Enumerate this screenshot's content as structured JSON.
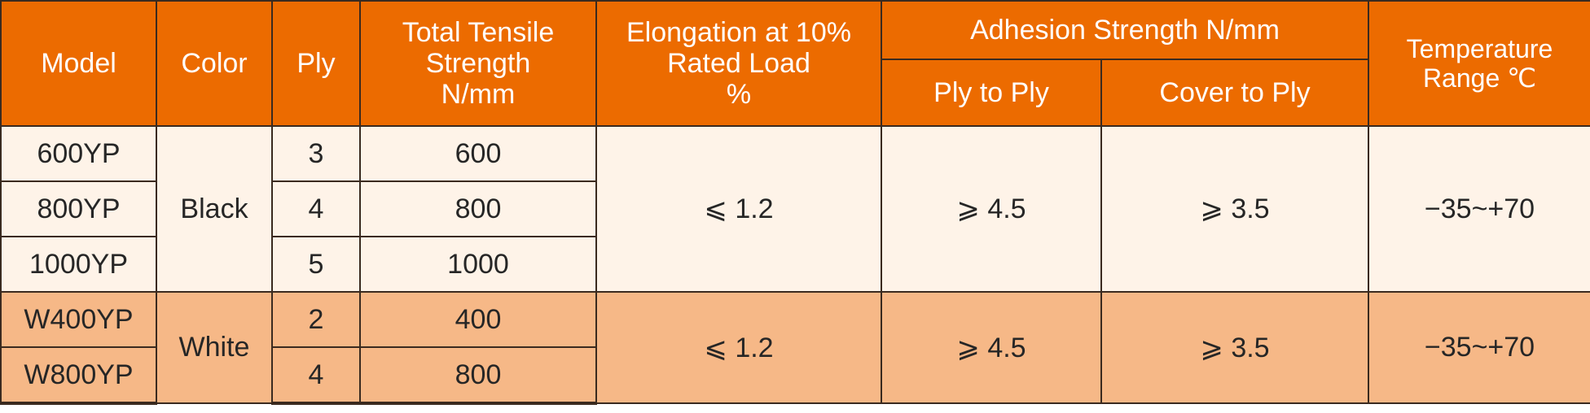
{
  "colors": {
    "header_bg": "#ec6b00",
    "header_text": "#ffffff",
    "row_light": "#fef3e8",
    "row_orange": "#f6b887",
    "border": "#3a2a1f"
  },
  "headers": {
    "model": "Model",
    "color": "Color",
    "ply": "Ply",
    "tensile": "Total Tensile\nStrength\nN/mm",
    "elongation": "Elongation at 10%\nRated Load\n%",
    "adhesion": "Adhesion Strength N/mm",
    "ply_to_ply": "Ply to Ply",
    "cover_to_ply": "Cover to Ply",
    "temperature": "Temperature\nRange ℃"
  },
  "groups": [
    {
      "color": "Black",
      "elongation": "⩽ 1.2",
      "ply_to_ply": "⩾ 4.5",
      "cover_to_ply": "⩾ 3.5",
      "temperature": "−35~+70",
      "rows": [
        {
          "model": "600YP",
          "ply": "3",
          "tensile": "600"
        },
        {
          "model": "800YP",
          "ply": "4",
          "tensile": "800"
        },
        {
          "model": "1000YP",
          "ply": "5",
          "tensile": "1000"
        }
      ]
    },
    {
      "color": "White",
      "elongation": "⩽ 1.2",
      "ply_to_ply": "⩾ 4.5",
      "cover_to_ply": "⩾ 3.5",
      "temperature": "−35~+70",
      "rows": [
        {
          "model": "W400YP",
          "ply": "2",
          "tensile": "400"
        },
        {
          "model": "W800YP",
          "ply": "4",
          "tensile": "800"
        }
      ]
    }
  ]
}
